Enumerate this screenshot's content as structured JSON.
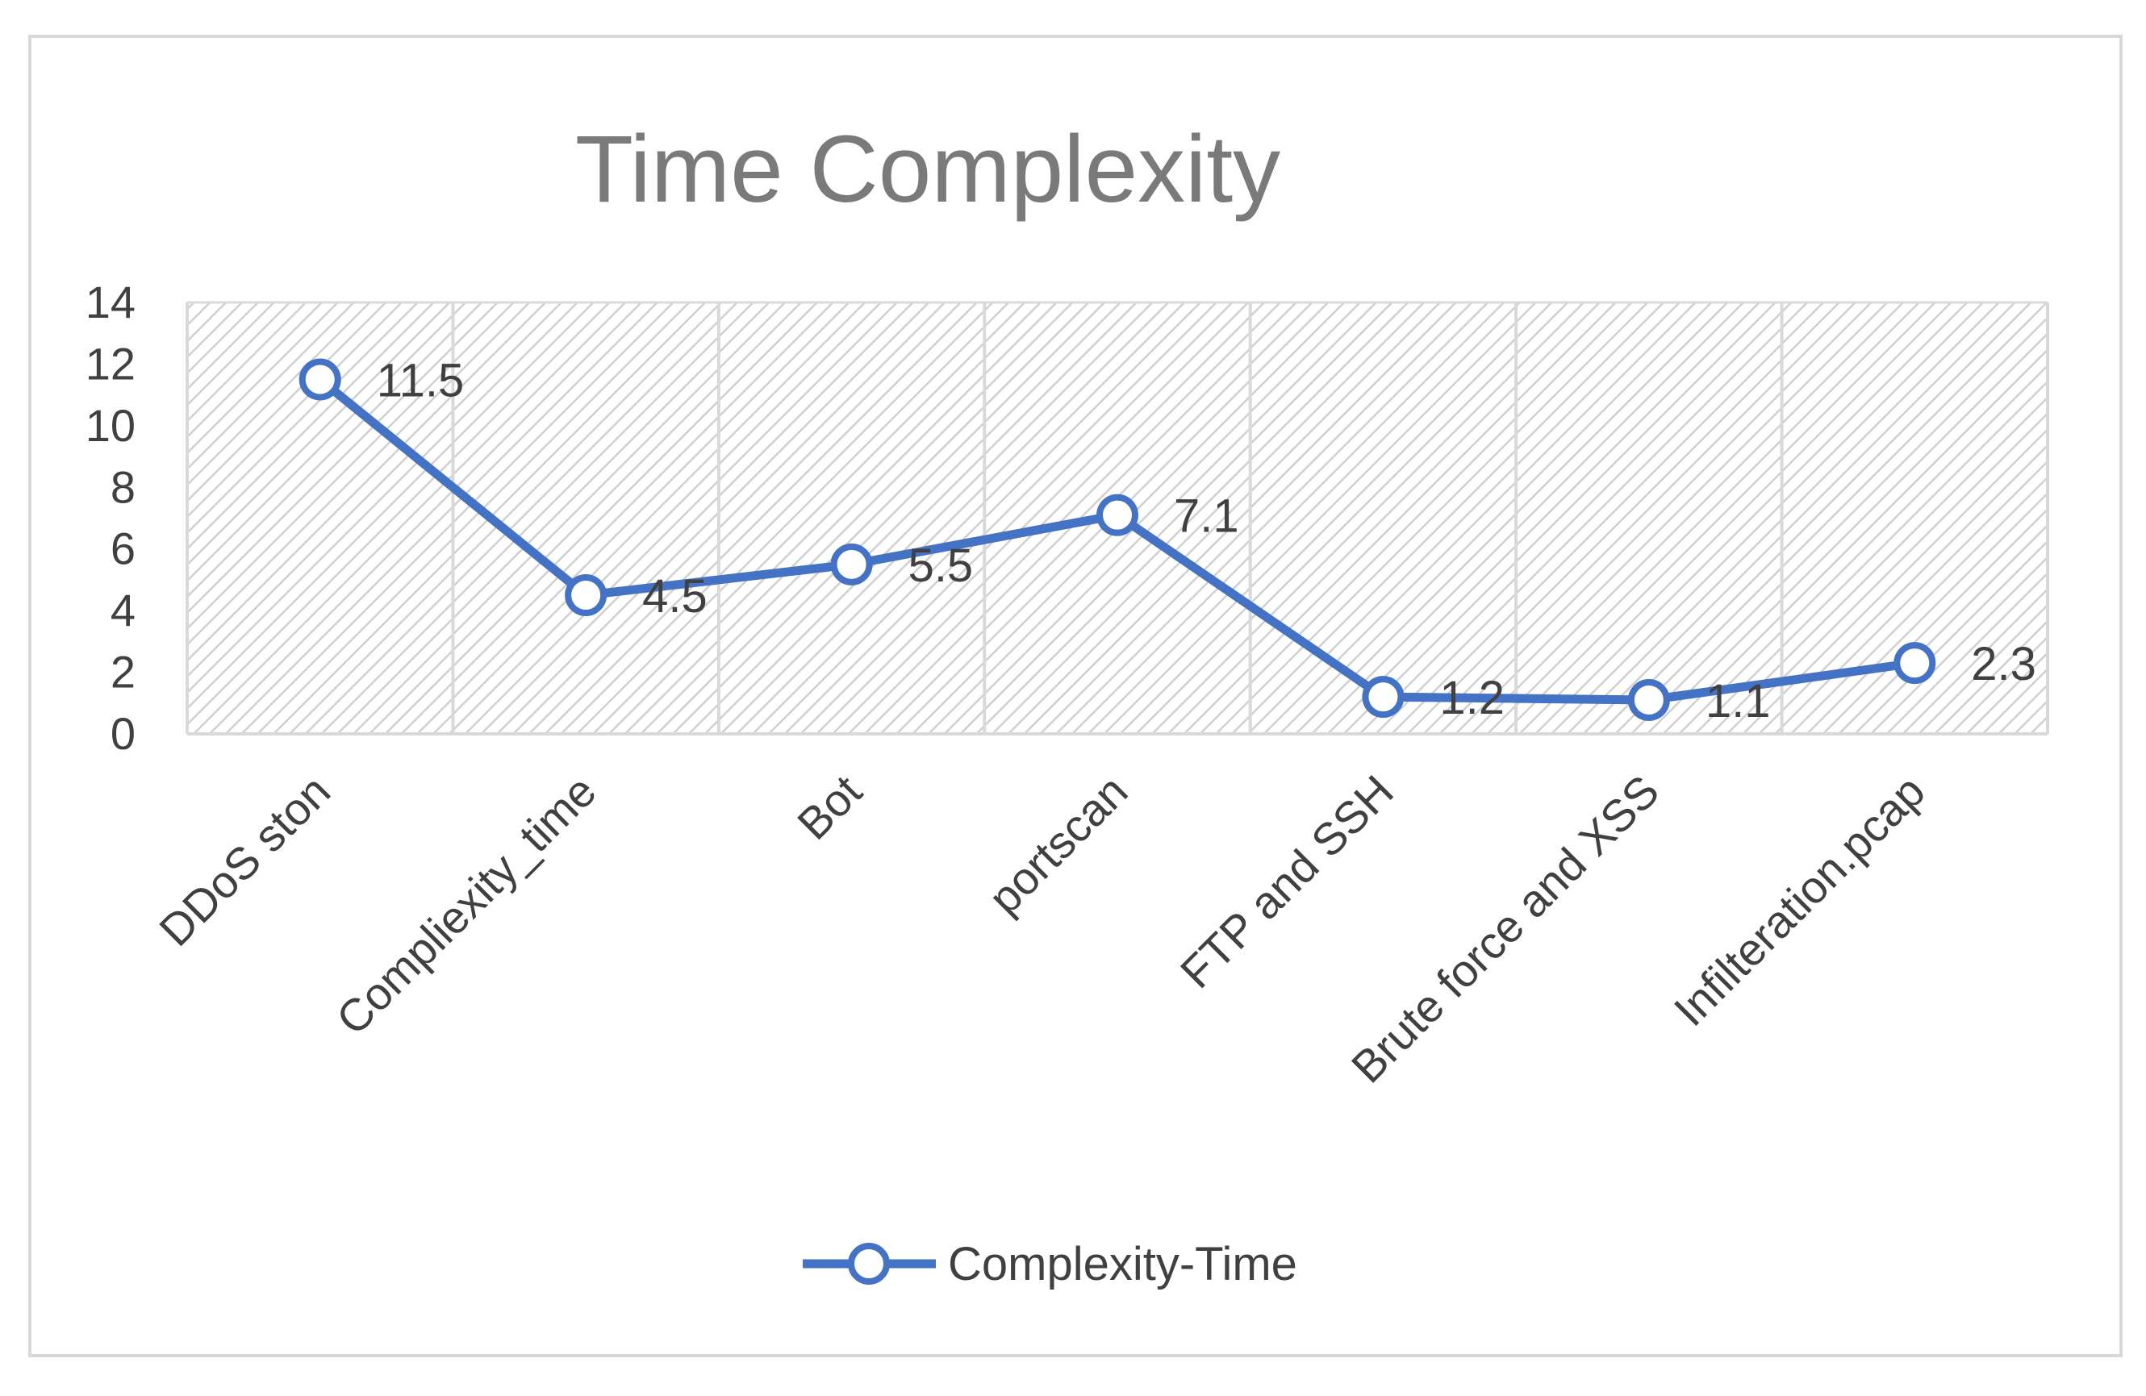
{
  "chart_data": {
    "type": "line",
    "title": "Time Complexity",
    "xlabel": "",
    "ylabel": "",
    "categories": [
      "DDoS ston",
      "Compliexity_time",
      "Bot",
      "portscan",
      "FTP and SSH",
      "Brute force and XSS",
      "Infilteration.pcap"
    ],
    "series": [
      {
        "name": "Complexity-Time",
        "values": [
          11.5,
          4.5,
          5.5,
          7.1,
          1.2,
          1.1,
          2.3
        ]
      }
    ],
    "data_labels": [
      "11.5",
      "4.5",
      "5.5",
      "7.1",
      "1.2",
      "1.1",
      "2.3"
    ],
    "yticks": [
      "0",
      "2",
      "4",
      "6",
      "8",
      "10",
      "12",
      "14"
    ],
    "ylim": [
      0,
      14
    ],
    "grid": "vertical",
    "legend_position": "bottom",
    "colors": {
      "line": "#4472c4",
      "marker_fill": "#ffffff",
      "grid": "#d9d9d9",
      "hatch": "#d0d0d0",
      "frame": "#d9d9d9"
    }
  }
}
